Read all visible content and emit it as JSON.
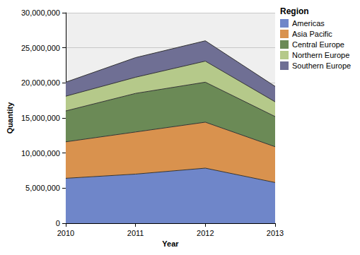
{
  "chart_data": {
    "type": "area",
    "stacked": true,
    "x_label": "Year",
    "y_label": "Quantity",
    "legend_title": "Region",
    "legend": "top right",
    "grid": true,
    "categories": [
      "2010",
      "2011",
      "2012",
      "2013"
    ],
    "series": [
      {
        "name": "Americas",
        "color": "#6f86c9",
        "values": [
          6400000,
          7000000,
          7850000,
          5800000
        ]
      },
      {
        "name": "Asia Pacific",
        "color": "#d9924e",
        "values": [
          5200000,
          6000000,
          6550000,
          5100000
        ]
      },
      {
        "name": "Central Europe",
        "color": "#6b8a56",
        "values": [
          4400000,
          5500000,
          5700000,
          4300000
        ]
      },
      {
        "name": "Northern Europe",
        "color": "#b5c98a",
        "values": [
          2100000,
          2300000,
          3000000,
          2100000
        ]
      },
      {
        "name": "Southern Europe",
        "color": "#6f6f94",
        "values": [
          2000000,
          2800000,
          2900000,
          2200000
        ]
      }
    ],
    "ylim": [
      0,
      30000000
    ],
    "yticks": [
      0,
      {
        "value": 5000000,
        "label": "5,000,000"
      },
      {
        "value": 10000000,
        "label": "10,000,000"
      },
      {
        "value": 15000000,
        "label": "15,000,000"
      },
      {
        "value": 20000000,
        "label": "20,000,000"
      },
      {
        "value": 25000000,
        "label": "25,000,000"
      },
      {
        "value": 30000000,
        "label": "30,000,000"
      }
    ]
  }
}
